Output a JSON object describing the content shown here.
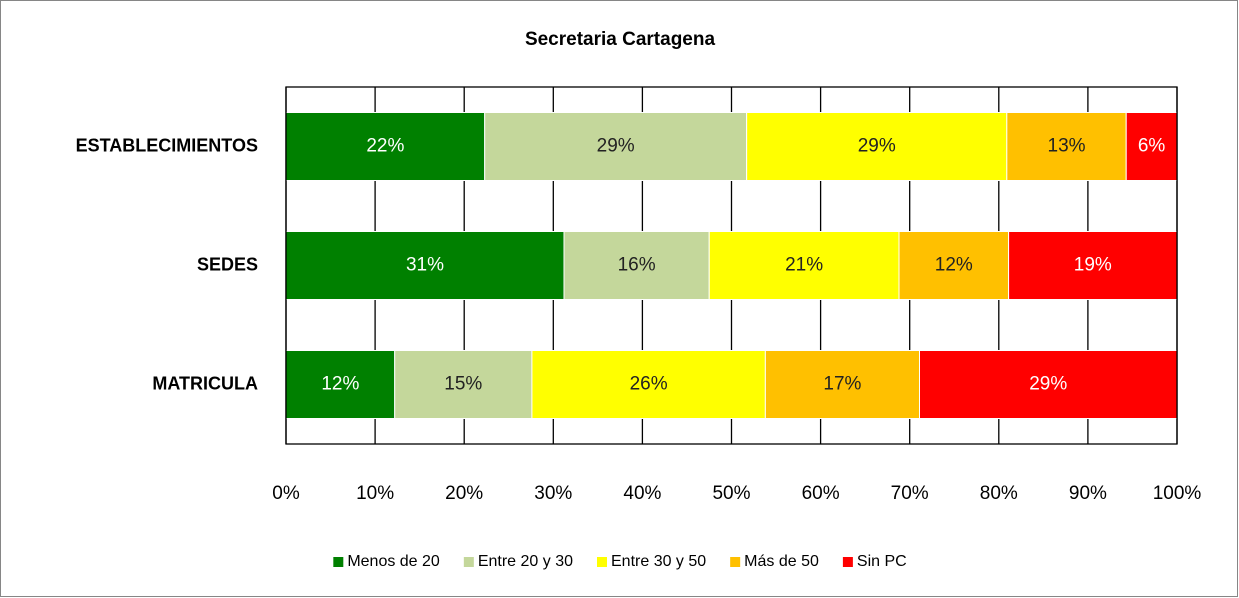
{
  "chart_data": {
    "type": "stacked_bar_horizontal",
    "title": "Secretaria Cartagena",
    "categories": [
      "ESTABLECIMIENTOS",
      "SEDES",
      "MATRICULA"
    ],
    "series": [
      {
        "name": "Menos de 20",
        "color": "#008000",
        "values": [
          22.3,
          31.2,
          12.2
        ],
        "value_labels": [
          "22%",
          "31%",
          "12%"
        ]
      },
      {
        "name": "Entre 20 y 30",
        "color": "#c4d79b",
        "values": [
          29.4,
          16.3,
          15.4
        ],
        "value_labels": [
          "29%",
          "16%",
          "15%"
        ]
      },
      {
        "name": "Entre 30 y 50",
        "color": "#ffff00",
        "values": [
          29.2,
          21.3,
          26.2
        ],
        "value_labels": [
          "29%",
          "21%",
          "26%"
        ]
      },
      {
        "name": "Más de 50",
        "color": "#ffc000",
        "values": [
          13.4,
          12.3,
          17.3
        ],
        "value_labels": [
          "13%",
          "12%",
          "17%"
        ]
      },
      {
        "name": "Sin PC",
        "color": "#ff0000",
        "values": [
          5.7,
          18.9,
          28.9
        ],
        "value_labels": [
          "6%",
          "19%",
          "29%"
        ]
      }
    ],
    "xlim": [
      0,
      100
    ],
    "xticks": [
      {
        "value": 0,
        "label": "0%"
      },
      {
        "value": 10,
        "label": "10%"
      },
      {
        "value": 20,
        "label": "20%"
      },
      {
        "value": 30,
        "label": "30%"
      },
      {
        "value": 40,
        "label": "40%"
      },
      {
        "value": 50,
        "label": "50%"
      },
      {
        "value": 60,
        "label": "60%"
      },
      {
        "value": 70,
        "label": "70%"
      },
      {
        "value": 80,
        "label": "80%"
      },
      {
        "value": 90,
        "label": "90%"
      },
      {
        "value": 100,
        "label": "100%"
      }
    ],
    "grid": true,
    "legend": "bottom"
  }
}
